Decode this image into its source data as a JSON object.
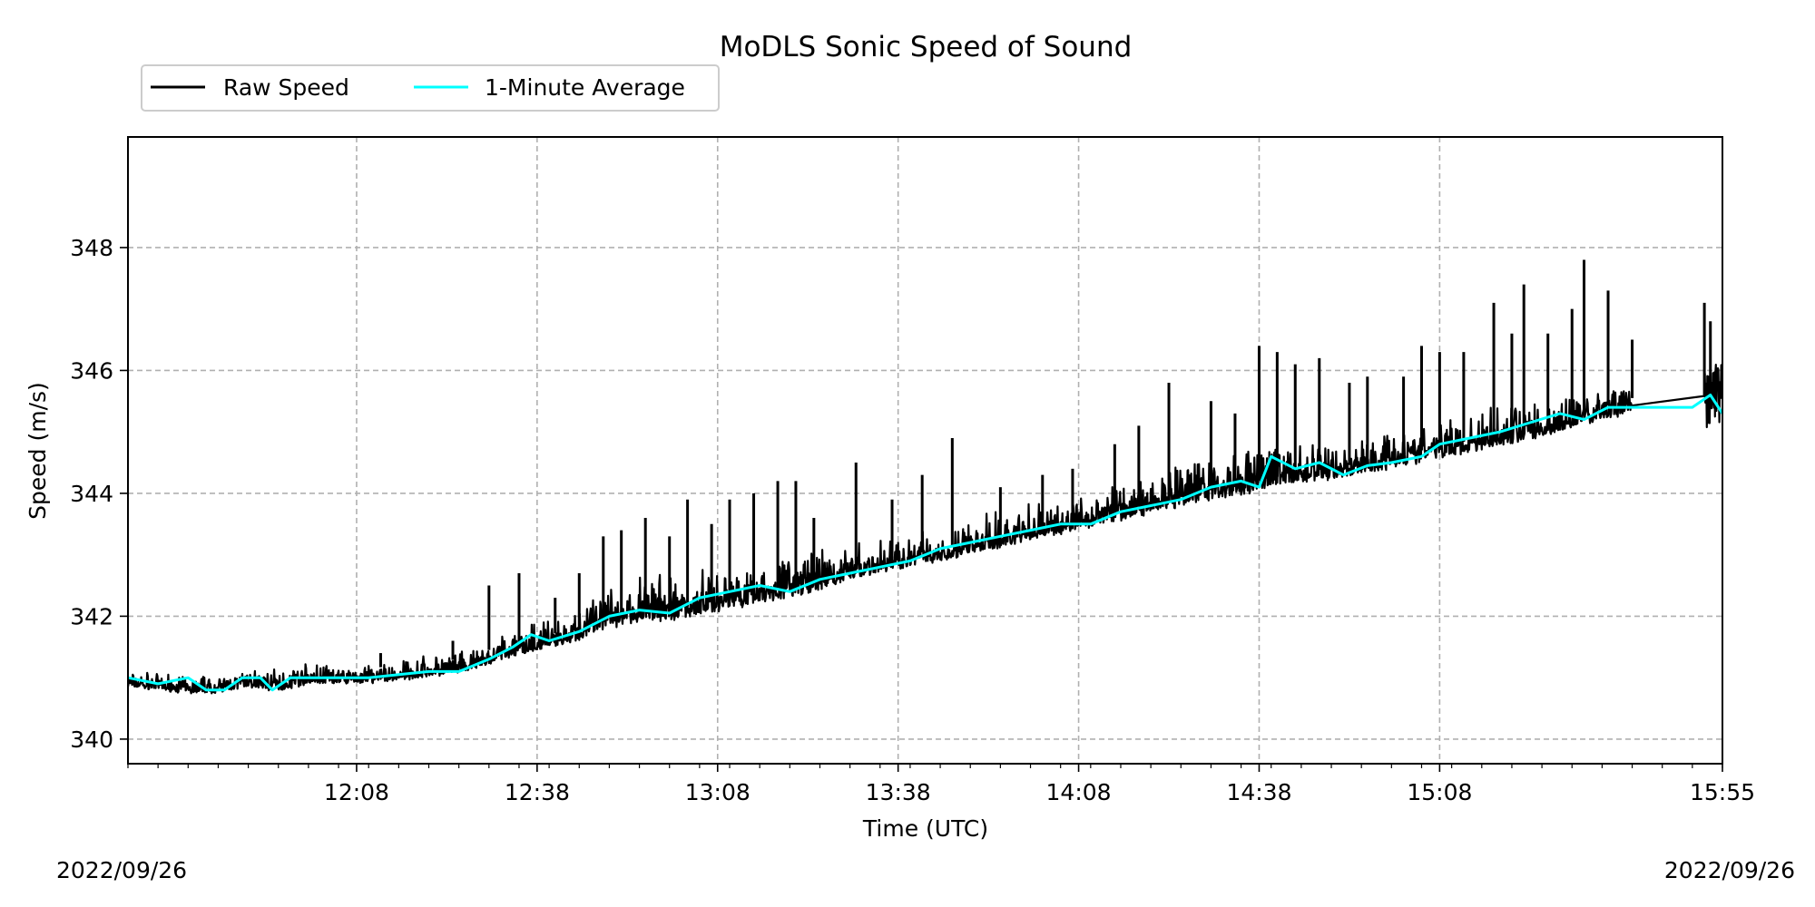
{
  "chart_data": {
    "type": "line",
    "title": "MoDLS Sonic Speed of Sound",
    "xlabel": "Time (UTC)",
    "ylabel": "Speed (m/s)",
    "x_unit": "minutes of day (UTC)",
    "xlim": [
      690,
      955
    ],
    "ylim": [
      339.6,
      349.8
    ],
    "grid": true,
    "legend": {
      "placement": "above-top-left",
      "entries": [
        {
          "label": "Raw Speed",
          "color": "#000000"
        },
        {
          "label": "1-Minute Average",
          "color": "#00ffff"
        }
      ]
    },
    "x_ticks": [
      {
        "value": 728,
        "label": "12:08"
      },
      {
        "value": 758,
        "label": "12:38"
      },
      {
        "value": 788,
        "label": "13:08"
      },
      {
        "value": 818,
        "label": "13:38"
      },
      {
        "value": 848,
        "label": "14:08"
      },
      {
        "value": 878,
        "label": "14:38"
      },
      {
        "value": 908,
        "label": "15:08"
      },
      {
        "value": 955,
        "label": "15:55"
      }
    ],
    "y_ticks": [
      340,
      342,
      344,
      346,
      348
    ],
    "date_left": "2022/09/26",
    "date_right": "2022/09/26",
    "series": [
      {
        "name": "1-Minute Average",
        "color": "#00ffff",
        "x": [
          690,
          695,
          700,
          703,
          706,
          709,
          712,
          714,
          717,
          720,
          725,
          730,
          735,
          740,
          745,
          750,
          754,
          757,
          760,
          765,
          770,
          775,
          780,
          785,
          790,
          795,
          800,
          805,
          810,
          815,
          820,
          825,
          830,
          835,
          840,
          845,
          850,
          855,
          860,
          865,
          870,
          875,
          878,
          880,
          884,
          888,
          892,
          896,
          900,
          905,
          908,
          913,
          918,
          923,
          928,
          932,
          936,
          941,
          944,
          950,
          953,
          955
        ],
        "y": [
          341.0,
          340.9,
          341.0,
          340.8,
          340.8,
          341.0,
          341.0,
          340.8,
          341.0,
          341.0,
          341.0,
          341.0,
          341.05,
          341.1,
          341.1,
          341.3,
          341.5,
          341.7,
          341.6,
          341.75,
          342.0,
          342.1,
          342.05,
          342.3,
          342.4,
          342.5,
          342.4,
          342.6,
          342.7,
          342.8,
          342.9,
          343.1,
          343.2,
          343.3,
          343.4,
          343.5,
          343.5,
          343.7,
          343.8,
          343.9,
          344.1,
          344.2,
          344.1,
          344.6,
          344.4,
          344.5,
          344.3,
          344.45,
          344.5,
          344.6,
          344.8,
          344.9,
          345.0,
          345.15,
          345.3,
          345.2,
          345.4,
          345.4,
          345.4,
          345.4,
          345.6,
          345.3
        ]
      },
      {
        "name": "Raw Speed",
        "color": "#000000",
        "x": [
          690,
          695,
          700,
          705,
          710,
          715,
          720,
          725,
          730,
          735,
          740,
          745,
          750,
          755,
          760,
          765,
          770,
          775,
          780,
          785,
          790,
          795,
          800,
          805,
          810,
          815,
          820,
          825,
          830,
          835,
          840,
          845,
          850,
          855,
          860,
          865,
          870,
          875,
          880,
          885,
          890,
          895,
          900,
          905,
          910,
          915,
          920,
          925,
          930,
          935,
          940,
          945,
          950,
          955
        ],
        "y_min": [
          340.8,
          340.75,
          340.7,
          340.7,
          340.8,
          340.7,
          340.85,
          340.85,
          340.85,
          340.9,
          340.95,
          341.0,
          341.15,
          341.3,
          341.4,
          341.5,
          341.7,
          341.8,
          341.8,
          341.9,
          342.0,
          342.1,
          342.2,
          342.3,
          342.5,
          342.6,
          342.7,
          342.8,
          342.9,
          343.0,
          343.15,
          343.25,
          343.35,
          343.45,
          343.55,
          343.65,
          343.75,
          343.85,
          343.95,
          344.05,
          344.1,
          344.2,
          344.3,
          344.4,
          344.5,
          344.6,
          344.7,
          344.8,
          344.95,
          345.1,
          345.25,
          345.35,
          345.5,
          345.0
        ],
        "y_max": [
          341.2,
          341.15,
          341.1,
          341.1,
          341.2,
          341.3,
          341.3,
          341.3,
          341.3,
          341.35,
          341.45,
          341.5,
          341.65,
          341.9,
          342.1,
          342.3,
          342.6,
          342.8,
          342.8,
          342.9,
          343.0,
          343.1,
          343.15,
          343.2,
          343.3,
          343.4,
          343.5,
          343.6,
          343.7,
          343.8,
          343.9,
          344.0,
          344.2,
          344.4,
          344.5,
          344.6,
          344.8,
          345.0,
          345.1,
          345.0,
          345.0,
          345.1,
          345.2,
          345.3,
          345.4,
          345.5,
          345.6,
          345.7,
          345.8,
          345.9,
          345.8,
          345.75,
          346.0,
          346.4
        ],
        "spikes": [
          {
            "x": 732,
            "y": 341.4
          },
          {
            "x": 744,
            "y": 341.6
          },
          {
            "x": 750,
            "y": 342.5
          },
          {
            "x": 755,
            "y": 342.7
          },
          {
            "x": 761,
            "y": 342.3
          },
          {
            "x": 765,
            "y": 342.7
          },
          {
            "x": 769,
            "y": 343.3
          },
          {
            "x": 772,
            "y": 343.4
          },
          {
            "x": 776,
            "y": 343.6
          },
          {
            "x": 780,
            "y": 343.3
          },
          {
            "x": 783,
            "y": 343.9
          },
          {
            "x": 787,
            "y": 343.5
          },
          {
            "x": 790,
            "y": 343.9
          },
          {
            "x": 794,
            "y": 344.0
          },
          {
            "x": 798,
            "y": 344.2
          },
          {
            "x": 801,
            "y": 344.2
          },
          {
            "x": 804,
            "y": 343.6
          },
          {
            "x": 811,
            "y": 344.5
          },
          {
            "x": 817,
            "y": 343.9
          },
          {
            "x": 822,
            "y": 344.3
          },
          {
            "x": 827,
            "y": 344.9
          },
          {
            "x": 835,
            "y": 344.1
          },
          {
            "x": 842,
            "y": 344.3
          },
          {
            "x": 847,
            "y": 344.4
          },
          {
            "x": 854,
            "y": 344.8
          },
          {
            "x": 858,
            "y": 345.1
          },
          {
            "x": 863,
            "y": 345.8
          },
          {
            "x": 870,
            "y": 345.5
          },
          {
            "x": 874,
            "y": 345.3
          },
          {
            "x": 878,
            "y": 346.4
          },
          {
            "x": 881,
            "y": 346.3
          },
          {
            "x": 884,
            "y": 346.1
          },
          {
            "x": 888,
            "y": 346.2
          },
          {
            "x": 893,
            "y": 345.8
          },
          {
            "x": 896,
            "y": 345.9
          },
          {
            "x": 902,
            "y": 345.9
          },
          {
            "x": 905,
            "y": 346.4
          },
          {
            "x": 908,
            "y": 346.3
          },
          {
            "x": 912,
            "y": 346.3
          },
          {
            "x": 917,
            "y": 347.1
          },
          {
            "x": 920,
            "y": 346.6
          },
          {
            "x": 922,
            "y": 347.4
          },
          {
            "x": 926,
            "y": 346.6
          },
          {
            "x": 930,
            "y": 347.0
          },
          {
            "x": 932,
            "y": 347.8
          },
          {
            "x": 936,
            "y": 347.3
          },
          {
            "x": 940,
            "y": 346.5
          },
          {
            "x": 952,
            "y": 347.1
          },
          {
            "x": 953,
            "y": 346.8
          }
        ],
        "gap": [
          940,
          952
        ]
      }
    ]
  }
}
